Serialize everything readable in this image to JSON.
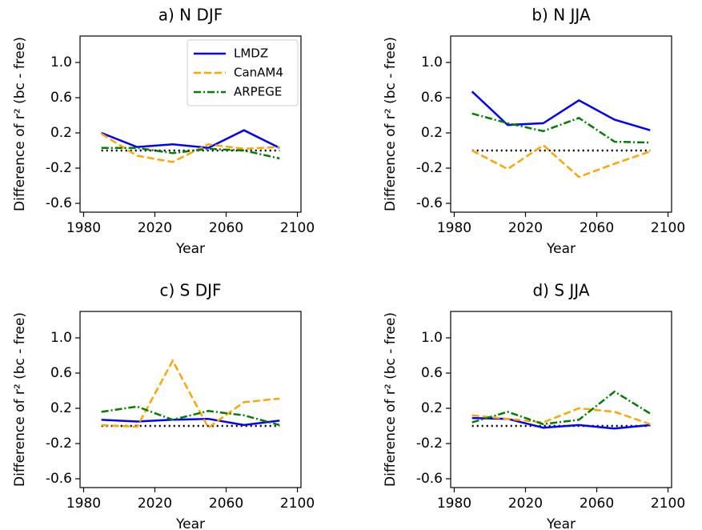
{
  "chart_data": [
    {
      "type": "line",
      "title": "a) N DJF",
      "xlabel": "Year",
      "ylabel": "Difference of r² (bc - free)",
      "x": [
        1990,
        2010,
        2030,
        2050,
        2070,
        2090
      ],
      "series": [
        {
          "name": "LMDZ",
          "color": "#0000ff",
          "linestyle": "solid",
          "values": [
            0.2,
            0.04,
            0.07,
            0.03,
            0.23,
            0.03
          ]
        },
        {
          "name": "CanAM4",
          "color": "#ffa500",
          "linestyle": "dashed",
          "values": [
            0.19,
            -0.06,
            -0.13,
            0.07,
            0.02,
            0.04
          ]
        },
        {
          "name": "ARPEGE",
          "color": "#008000",
          "linestyle": "dashdot",
          "values": [
            0.03,
            0.03,
            -0.03,
            0.02,
            0.0,
            -0.09
          ]
        }
      ],
      "xlim": [
        1978,
        2102
      ],
      "ylim": [
        -0.7,
        1.3
      ],
      "xticks": [
        1980,
        2020,
        2060,
        2100
      ],
      "yticks": [
        -0.6,
        -0.2,
        0.2,
        0.6,
        {
          "value": 1,
          "label": "1.0"
        }
      ],
      "hline": 0,
      "legend": "upper right"
    },
    {
      "type": "line",
      "title": "b) N JJA",
      "xlabel": "Year",
      "ylabel": "Difference of r² (bc - free)",
      "x": [
        1990,
        2010,
        2030,
        2050,
        2070,
        2090
      ],
      "series": [
        {
          "name": "LMDZ",
          "color": "#0000ff",
          "linestyle": "solid",
          "values": [
            0.67,
            0.29,
            0.31,
            0.57,
            0.35,
            0.23
          ]
        },
        {
          "name": "CanAM4",
          "color": "#ffa500",
          "linestyle": "dashed",
          "values": [
            0.0,
            -0.21,
            0.06,
            -0.3,
            -0.15,
            -0.01
          ]
        },
        {
          "name": "ARPEGE",
          "color": "#008000",
          "linestyle": "dashdot",
          "values": [
            0.42,
            0.31,
            0.22,
            0.37,
            0.1,
            0.09
          ]
        }
      ],
      "xlim": [
        1978,
        2102
      ],
      "ylim": [
        -0.7,
        1.3
      ],
      "xticks": [
        1980,
        2020,
        2060,
        2100
      ],
      "yticks": [
        -0.6,
        -0.2,
        0.2,
        0.6,
        {
          "value": 1,
          "label": "1.0"
        }
      ],
      "hline": 0
    },
    {
      "type": "line",
      "title": "c) S DJF",
      "xlabel": "Year",
      "ylabel": "Difference of r² (bc - free)",
      "x": [
        1990,
        2010,
        2030,
        2050,
        2070,
        2090
      ],
      "series": [
        {
          "name": "LMDZ",
          "color": "#0000ff",
          "linestyle": "solid",
          "values": [
            0.07,
            0.05,
            0.07,
            0.08,
            0.01,
            0.06
          ]
        },
        {
          "name": "CanAM4",
          "color": "#ffa500",
          "linestyle": "dashed",
          "values": [
            0.01,
            -0.01,
            0.74,
            -0.02,
            0.27,
            0.31
          ]
        },
        {
          "name": "ARPEGE",
          "color": "#008000",
          "linestyle": "dashdot",
          "values": [
            0.16,
            0.22,
            0.07,
            0.17,
            0.12,
            0.01
          ]
        }
      ],
      "xlim": [
        1978,
        2102
      ],
      "ylim": [
        -0.7,
        1.3
      ],
      "xticks": [
        1980,
        2020,
        2060,
        2100
      ],
      "yticks": [
        -0.6,
        -0.2,
        0.2,
        0.6,
        {
          "value": 1,
          "label": "1.0"
        }
      ],
      "hline": 0
    },
    {
      "type": "line",
      "title": "d) S JJA",
      "xlabel": "Year",
      "ylabel": "Difference of r² (bc - free)",
      "x": [
        1990,
        2010,
        2030,
        2050,
        2070,
        2090
      ],
      "series": [
        {
          "name": "LMDZ",
          "color": "#0000ff",
          "linestyle": "solid",
          "values": [
            0.09,
            0.08,
            -0.02,
            0.01,
            -0.03,
            0.01
          ]
        },
        {
          "name": "CanAM4",
          "color": "#ffa500",
          "linestyle": "dashed",
          "values": [
            0.12,
            0.08,
            0.04,
            0.2,
            0.16,
            0.02
          ]
        },
        {
          "name": "ARPEGE",
          "color": "#008000",
          "linestyle": "dashdot",
          "values": [
            0.04,
            0.16,
            0.02,
            0.07,
            0.39,
            0.14
          ]
        }
      ],
      "xlim": [
        1978,
        2102
      ],
      "ylim": [
        -0.7,
        1.3
      ],
      "xticks": [
        1980,
        2020,
        2060,
        2100
      ],
      "yticks": [
        -0.6,
        -0.2,
        0.2,
        0.6,
        {
          "value": 1,
          "label": "1.0"
        }
      ],
      "hline": 0
    }
  ]
}
